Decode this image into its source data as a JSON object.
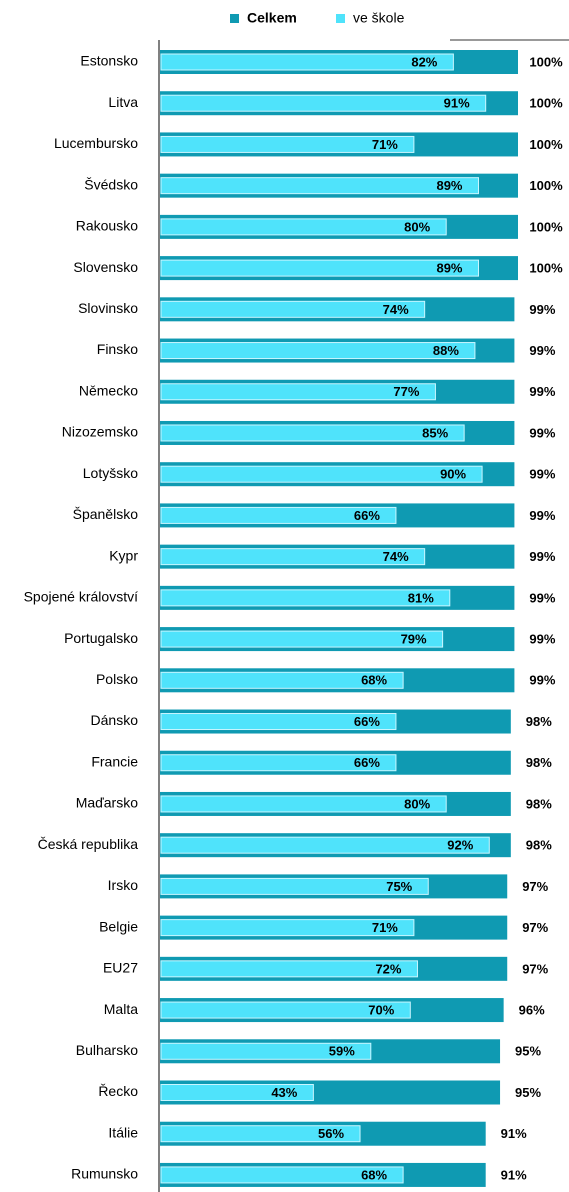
{
  "chart_data": {
    "type": "bar",
    "orientation": "horizontal",
    "overlap": true,
    "categories": [
      "Estonsko",
      "Litva",
      "Lucembursko",
      "Švédsko",
      "Rakousko",
      "Slovensko",
      "Slovinsko",
      "Finsko",
      "Německo",
      "Nizozemsko",
      "Lotyšsko",
      "Španělsko",
      "Kypr",
      "Spojené království",
      "Portugalsko",
      "Polsko",
      "Dánsko",
      "Francie",
      "Maďarsko",
      "Česká republika",
      "Irsko",
      "Belgie",
      "EU27",
      "Malta",
      "Bulharsko",
      "Řecko",
      "Itálie",
      "Rumunsko"
    ],
    "series": [
      {
        "name": "Celkem",
        "color": "#0f9ab2",
        "values": [
          100,
          100,
          100,
          100,
          100,
          100,
          99,
          99,
          99,
          99,
          99,
          99,
          99,
          99,
          99,
          99,
          98,
          98,
          98,
          98,
          97,
          97,
          97,
          96,
          95,
          95,
          91,
          91
        ],
        "value_labels": [
          "100%",
          "100%",
          "100%",
          "100%",
          "100%",
          "100%",
          "99%",
          "99%",
          "99%",
          "99%",
          "99%",
          "99%",
          "99%",
          "99%",
          "99%",
          "99%",
          "98%",
          "98%",
          "98%",
          "98%",
          "97%",
          "97%",
          "97%",
          "96%",
          "95%",
          "95%",
          "91%",
          "91%"
        ]
      },
      {
        "name": "ve škole",
        "color": "#4fe3fb",
        "values": [
          82,
          91,
          71,
          89,
          80,
          89,
          74,
          88,
          77,
          85,
          90,
          66,
          74,
          81,
          79,
          68,
          66,
          66,
          80,
          92,
          75,
          71,
          72,
          70,
          59,
          43,
          56,
          68
        ],
        "value_labels": [
          "82%",
          "91%",
          "71%",
          "89%",
          "80%",
          "89%",
          "74%",
          "88%",
          "77%",
          "85%",
          "90%",
          "66%",
          "74%",
          "81%",
          "79%",
          "68%",
          "66%",
          "66%",
          "80%",
          "92%",
          "75%",
          "71%",
          "72%",
          "70%",
          "59%",
          "43%",
          "56%",
          "68%"
        ]
      }
    ],
    "xlim": [
      0,
      100
    ],
    "legend": "top"
  }
}
